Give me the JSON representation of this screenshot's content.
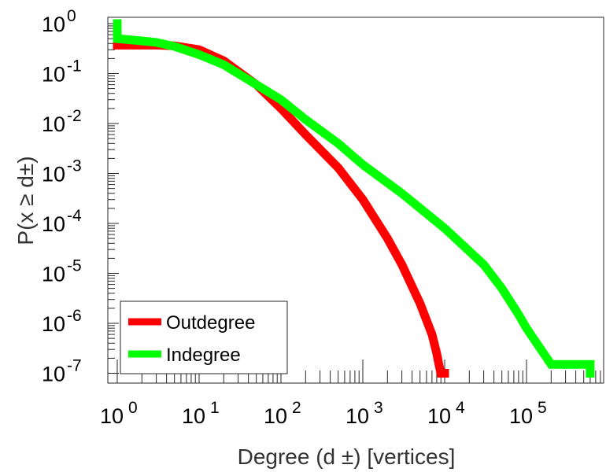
{
  "chart_data": {
    "type": "line",
    "xscale": "log",
    "yscale": "log",
    "xlim": [
      1,
      1000000
    ],
    "ylim": [
      1e-07,
      1
    ],
    "xlabel": "Degree (d ±) [vertices]",
    "ylabel": "P(x ≥ d±)",
    "x_ticks": [
      {
        "value": 1,
        "base": "10",
        "exp": "0"
      },
      {
        "value": 10,
        "base": "10",
        "exp": "1"
      },
      {
        "value": 100,
        "base": "10",
        "exp": "2"
      },
      {
        "value": 1000,
        "base": "10",
        "exp": "3"
      },
      {
        "value": 10000,
        "base": "10",
        "exp": "4"
      },
      {
        "value": 100000,
        "base": "10",
        "exp": "5"
      }
    ],
    "y_ticks": [
      {
        "value": 1,
        "base": "10",
        "exp": "0"
      },
      {
        "value": 0.1,
        "base": "10",
        "exp": "-1"
      },
      {
        "value": 0.01,
        "base": "10",
        "exp": "-2"
      },
      {
        "value": 0.001,
        "base": "10",
        "exp": "-3"
      },
      {
        "value": 0.0001,
        "base": "10",
        "exp": "-4"
      },
      {
        "value": 1e-05,
        "base": "10",
        "exp": "-5"
      },
      {
        "value": 1e-06,
        "base": "10",
        "exp": "-6"
      },
      {
        "value": 1e-07,
        "base": "10",
        "exp": "-7"
      }
    ],
    "grid": false,
    "legend_position": "bottom-left",
    "series": [
      {
        "name": "Outdegree",
        "color": "#ff0000",
        "x": [
          1,
          1,
          3,
          5,
          10,
          20,
          50,
          100,
          200,
          500,
          1000,
          2000,
          3000,
          5000,
          7000,
          8000,
          8500,
          9000,
          10000
        ],
        "y": [
          1,
          0.37,
          0.37,
          0.36,
          0.3,
          0.18,
          0.06,
          0.02,
          0.006,
          0.0013,
          0.0003,
          5e-05,
          1.5e-05,
          2.5e-06,
          6e-07,
          2.5e-07,
          1.5e-07,
          1e-07,
          1e-07
        ]
      },
      {
        "name": "Indegree",
        "color": "#00ff00",
        "x": [
          1,
          1,
          2,
          3,
          5,
          10,
          20,
          50,
          100,
          200,
          500,
          1000,
          3000,
          10000,
          30000,
          50000,
          80000,
          100000,
          200000,
          500000,
          600000,
          600000
        ],
        "y": [
          1,
          0.5,
          0.45,
          0.42,
          0.35,
          0.24,
          0.15,
          0.06,
          0.03,
          0.012,
          0.004,
          0.0015,
          0.0004,
          8e-05,
          1.5e-05,
          5e-06,
          1.5e-06,
          8e-07,
          1.5e-07,
          1.5e-07,
          1.5e-07,
          1e-07
        ]
      }
    ]
  }
}
